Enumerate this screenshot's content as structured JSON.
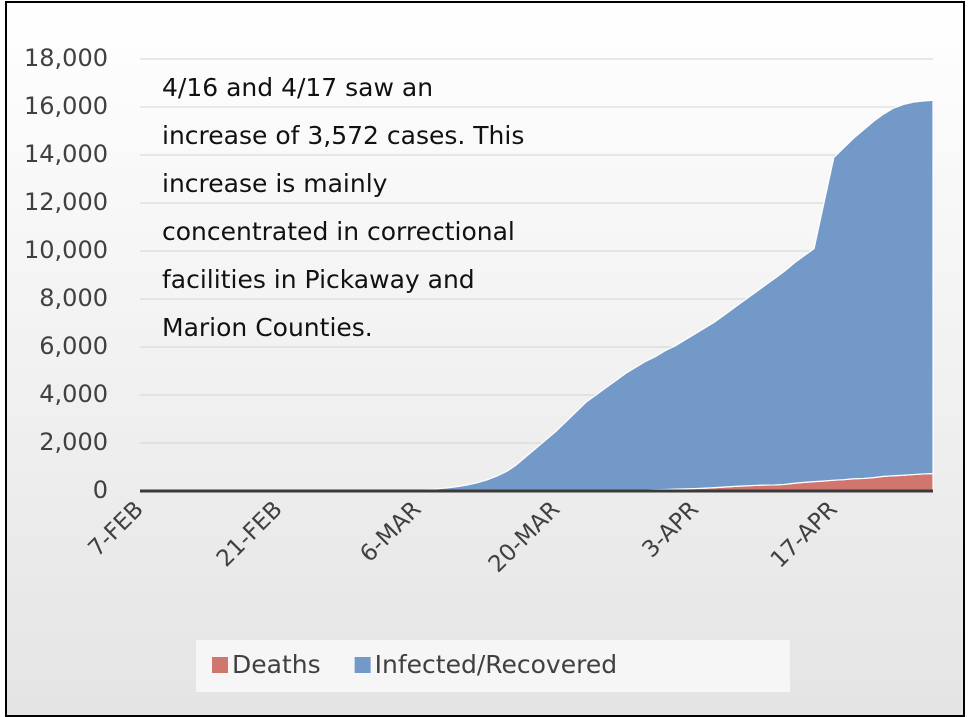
{
  "chart_data": {
    "type": "stacked_area",
    "annotation": "4/16 and 4/17 saw an increase of 3,572 cases. This increase is mainly concentrated in correctional facilities in Pickaway and Marion Counties.",
    "categories": [
      "7-FEB",
      null,
      null,
      null,
      null,
      null,
      null,
      null,
      null,
      null,
      null,
      null,
      null,
      null,
      "21-FEB",
      null,
      null,
      null,
      null,
      null,
      null,
      null,
      null,
      null,
      null,
      null,
      null,
      null,
      "6-MAR",
      null,
      null,
      null,
      null,
      null,
      null,
      null,
      null,
      null,
      null,
      null,
      null,
      null,
      "20-MAR",
      null,
      null,
      null,
      null,
      null,
      null,
      null,
      null,
      null,
      null,
      null,
      null,
      null,
      "3-APR",
      null,
      null,
      null,
      null,
      null,
      null,
      null,
      null,
      null,
      null,
      null,
      null,
      null,
      "17-APR",
      null,
      null,
      null,
      null,
      null,
      null,
      null,
      null,
      null,
      null
    ],
    "series": [
      {
        "name": "Deaths",
        "color": "#d0766f",
        "values": [
          0,
          0,
          0,
          0,
          0,
          0,
          0,
          0,
          0,
          0,
          0,
          0,
          0,
          0,
          0,
          0,
          0,
          0,
          0,
          0,
          0,
          0,
          0,
          0,
          0,
          0,
          0,
          0,
          0,
          0,
          0,
          0,
          0,
          0,
          0,
          0,
          0,
          0,
          0,
          0,
          0,
          0,
          1,
          2,
          3,
          5,
          7,
          10,
          15,
          20,
          29,
          39,
          55,
          65,
          81,
          91,
          102,
          119,
          142,
          167,
          193,
          213,
          231,
          247,
          253,
          274,
          324,
          361,
          389,
          418,
          451,
          471,
          509,
          524,
          557,
          610,
          636,
          656,
          685,
          711,
          728
        ]
      },
      {
        "name": "Infected/Recovered",
        "color": "#7399c9",
        "values": [
          0,
          0,
          0,
          0,
          0,
          0,
          0,
          0,
          0,
          0,
          0,
          0,
          0,
          0,
          0,
          0,
          0,
          0,
          0,
          0,
          0,
          0,
          0,
          0,
          0,
          0,
          10,
          20,
          40,
          60,
          90,
          130,
          180,
          250,
          340,
          460,
          620,
          820,
          1100,
          1450,
          1800,
          2150,
          2499,
          2898,
          3297,
          3695,
          3993,
          4290,
          4585,
          4880,
          5121,
          5361,
          5545,
          5785,
          5969,
          6209,
          6448,
          6681,
          6908,
          7183,
          7457,
          7737,
          8019,
          8303,
          8597,
          8876,
          9176,
          9439,
          9711,
          11582,
          13449,
          13829,
          14191,
          14526,
          14843,
          15090,
          15314,
          15444,
          15515,
          15539,
          15552
        ]
      }
    ],
    "ylim": [
      0,
      18000
    ],
    "yticks": [
      0,
      {
        "value": 2000,
        "label": "2,000"
      },
      {
        "value": 4000,
        "label": "4,000"
      },
      {
        "value": 6000,
        "label": "6,000"
      },
      {
        "value": 8000,
        "label": "8,000"
      },
      {
        "value": 10000,
        "label": "10,000"
      },
      {
        "value": 12000,
        "label": "12,000"
      },
      {
        "value": 14000,
        "label": "14,000"
      },
      {
        "value": 16000,
        "label": "16,000"
      },
      {
        "value": 18000,
        "label": "18,000"
      }
    ],
    "grid": true,
    "legend": "bottom"
  }
}
